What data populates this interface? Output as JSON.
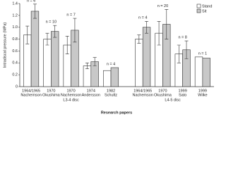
{
  "chart_data": {
    "type": "bar",
    "y_label": "Intradiscal pressure (MPa)",
    "x_label": "Research papers",
    "categories": [
      {
        "year": "1964/1965",
        "author": "Nachemson",
        "group": "L3-4 disc"
      },
      {
        "year": "1970",
        "author": "Okushima",
        "group": "L3-4 disc"
      },
      {
        "year": "1970",
        "author": "Nachemson",
        "group": "L3-4 disc"
      },
      {
        "year": "1974",
        "author": "Andersson",
        "group": "L3-4 disc"
      },
      {
        "year": "1982",
        "author": "Schultz",
        "group": "L3-4 disc"
      },
      {
        "year": "1964/1965",
        "author": "Nachemson",
        "group": "L4-5 disc"
      },
      {
        "year": "1970",
        "author": "Okushima",
        "group": "L4-5 disc"
      },
      {
        "year": "1999",
        "author": "Sato",
        "group": "L4-5 disc"
      },
      {
        "year": "1999",
        "author": "Wilke",
        "group": "L4-5 disc"
      }
    ],
    "n_labels": [
      "n = 6",
      "n = 10",
      "n = 7",
      null,
      "n = 4",
      "n = 4",
      "n = 20",
      "n = 8",
      "n = 1"
    ],
    "series": [
      {
        "name": "Stand",
        "color": "#ffffff",
        "values": [
          0.87,
          0.8,
          0.7,
          0.35,
          0.27,
          0.8,
          0.9,
          0.55,
          0.5
        ],
        "errors": [
          0.15,
          0.1,
          0.15,
          0.05,
          null,
          0.07,
          0.2,
          0.15,
          null
        ]
      },
      {
        "name": "Sit",
        "color": "#c8c8c8",
        "values": [
          1.27,
          0.93,
          0.95,
          0.42,
          0.32,
          1.0,
          1.05,
          0.62,
          0.48
        ],
        "errors": [
          0.12,
          0.1,
          0.2,
          0.07,
          null,
          0.1,
          0.25,
          0.15,
          null
        ]
      }
    ],
    "ylim": [
      0,
      1.4
    ],
    "yticks": [
      0,
      {
        "value": 0.2,
        "label": "0.2"
      },
      {
        "value": 0.4,
        "label": "0.4"
      },
      {
        "value": 0.6,
        "label": "0.6"
      },
      {
        "value": 0.8,
        "label": "0.8"
      },
      {
        "value": 1.0,
        "label": "1.0"
      },
      {
        "value": 1.2,
        "label": "1.2"
      },
      {
        "value": 1.4,
        "label": "1.4"
      }
    ],
    "legend": "top-right"
  }
}
